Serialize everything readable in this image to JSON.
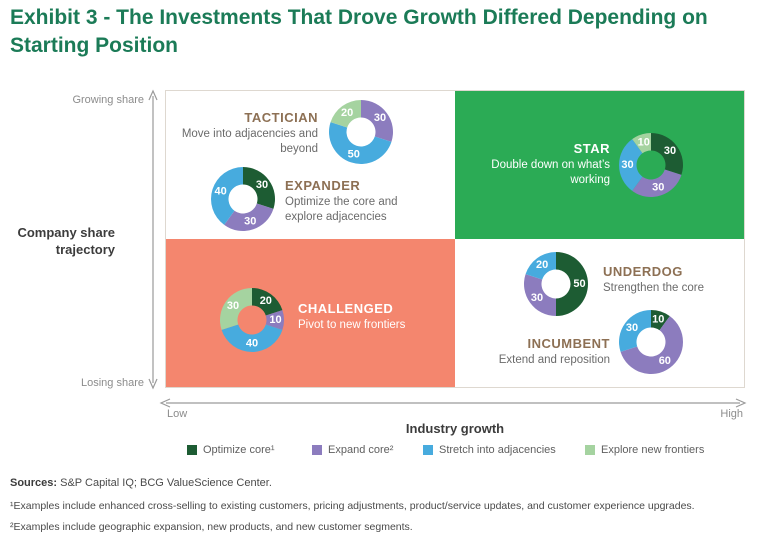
{
  "title": "Exhibit 3 - The Investments That Drove Growth Differed Depending on Starting Position",
  "axes": {
    "y_label_top": "Growing share",
    "y_label_bottom": "Losing share",
    "y_title": "Company share trajectory",
    "x_label_left": "Low",
    "x_label_right": "High",
    "x_title": "Industry growth"
  },
  "quadrant_colors": {
    "top_left": "#ffffff",
    "top_right": "#2bab55",
    "bottom_left": "#f4866e",
    "bottom_right": "#ffffff"
  },
  "legend": [
    {
      "label": "Optimize core¹",
      "color": "#1d5c33"
    },
    {
      "label": "Expand core²",
      "color": "#8c7cbe"
    },
    {
      "label": "Stretch into adjacencies",
      "color": "#47abde"
    },
    {
      "label": "Explore new frontiers",
      "color": "#a5d3a0"
    }
  ],
  "chart_data": {
    "type": "pie",
    "subtype": "donut-charts-in-2x2-matrix",
    "x_axis": {
      "title": "Industry growth",
      "range": [
        "Low",
        "High"
      ]
    },
    "y_axis": {
      "title": "Company share trajectory",
      "range": [
        "Losing share",
        "Growing share"
      ]
    },
    "series_colors": {
      "Optimize core": "#1d5c33",
      "Expand core": "#8c7cbe",
      "Stretch into adjacencies": "#47abde",
      "Explore new frontiers": "#a5d3a0"
    },
    "groups": [
      {
        "name": "TACTICIAN",
        "subtitle": "Move into adjacencies and beyond",
        "quadrant": "growing-share / low-growth",
        "segments": [
          {
            "series": "Expand core",
            "value": 30
          },
          {
            "series": "Stretch into adjacencies",
            "value": 50
          },
          {
            "series": "Explore new frontiers",
            "value": 20
          }
        ]
      },
      {
        "name": "EXPANDER",
        "subtitle": "Optimize the core and explore adjacencies",
        "quadrant": "growing-share / low-growth",
        "segments": [
          {
            "series": "Optimize core",
            "value": 30
          },
          {
            "series": "Expand core",
            "value": 30
          },
          {
            "series": "Stretch into adjacencies",
            "value": 40
          }
        ]
      },
      {
        "name": "STAR",
        "subtitle": "Double down on what’s working",
        "quadrant": "growing-share / high-growth",
        "segments": [
          {
            "series": "Optimize core",
            "value": 30
          },
          {
            "series": "Expand core",
            "value": 30
          },
          {
            "series": "Stretch into adjacencies",
            "value": 30
          },
          {
            "series": "Explore new frontiers",
            "value": 10
          }
        ]
      },
      {
        "name": "CHALLENGED",
        "subtitle": "Pivot to new frontiers",
        "quadrant": "losing-share / low-growth",
        "segments": [
          {
            "series": "Optimize core",
            "value": 20
          },
          {
            "series": "Expand core",
            "value": 10
          },
          {
            "series": "Stretch into adjacencies",
            "value": 40
          },
          {
            "series": "Explore new frontiers",
            "value": 30
          }
        ]
      },
      {
        "name": "UNDERDOG",
        "subtitle": "Strengthen the core",
        "quadrant": "losing-share / high-growth",
        "segments": [
          {
            "series": "Optimize core",
            "value": 50
          },
          {
            "series": "Expand core",
            "value": 30
          },
          {
            "series": "Stretch into adjacencies",
            "value": 20
          }
        ]
      },
      {
        "name": "INCUMBENT",
        "subtitle": "Extend and reposition",
        "quadrant": "losing-share / high-growth",
        "segments": [
          {
            "series": "Optimize core",
            "value": 10
          },
          {
            "series": "Expand core",
            "value": 60
          },
          {
            "series": "Stretch into adjacencies",
            "value": 30
          }
        ]
      }
    ]
  },
  "footer": {
    "sources_label": "Sources:",
    "sources_text": " S&P Capital IQ; BCG ValueScience Center.",
    "footnote1": "¹Examples include enhanced cross-selling to existing customers, pricing adjustments, product/service updates, and customer experience upgrades.",
    "footnote2": "²Examples include geographic expansion, new products, and new customer segments."
  }
}
